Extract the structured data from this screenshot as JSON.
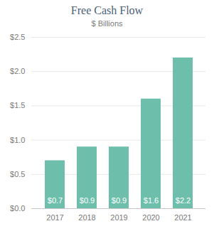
{
  "chart_data": {
    "type": "bar",
    "title": "Free Cash Flow",
    "subtitle": "$ Billions",
    "categories": [
      "2017",
      "2018",
      "2019",
      "2020",
      "2021"
    ],
    "values": [
      0.7,
      0.9,
      0.9,
      1.6,
      2.2
    ],
    "value_labels": [
      "$0.7",
      "$0.9",
      "$0.9",
      "$1.6",
      "$2.2"
    ],
    "data_labels": true,
    "color": "#6dbfac",
    "ylim": [
      0,
      2.5
    ],
    "yticks": [
      {
        "value": 0.0,
        "label": "$0.0"
      },
      {
        "value": 0.5,
        "label": "$0.5"
      },
      {
        "value": 1.0,
        "label": "$1.0"
      },
      {
        "value": 1.5,
        "label": "$1.5"
      },
      {
        "value": 2.0,
        "label": "$2.0"
      },
      {
        "value": 2.5,
        "label": "$2.5"
      }
    ],
    "grid": true
  }
}
